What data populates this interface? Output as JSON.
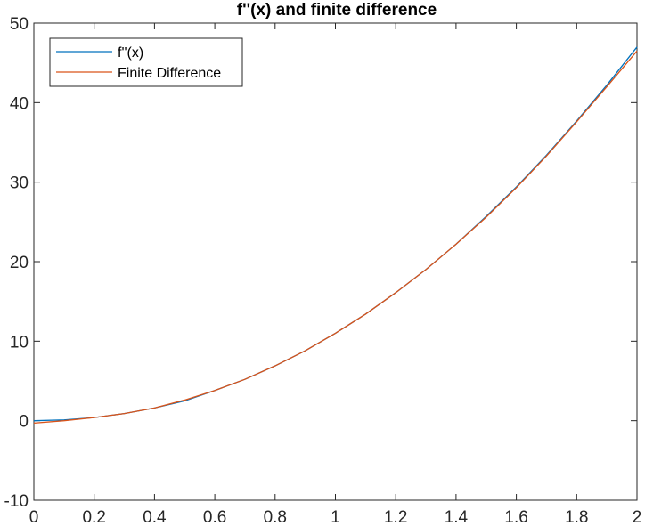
{
  "chart_data": {
    "type": "line",
    "title": "f''(x) and finite difference",
    "xlabel": "",
    "ylabel": "",
    "xlim": [
      0,
      2
    ],
    "ylim": [
      -10,
      50
    ],
    "xticks": [
      0,
      0.2,
      0.4,
      0.6,
      0.8,
      1,
      1.2,
      1.4,
      1.6,
      1.8,
      2
    ],
    "xtick_labels": [
      "0",
      "0.2",
      "0.4",
      "0.6",
      "0.8",
      "1",
      "1.2",
      "1.4",
      "1.6",
      "1.8",
      "2"
    ],
    "yticks": [
      -10,
      0,
      10,
      20,
      30,
      40,
      50
    ],
    "ytick_labels": [
      "-10",
      "0",
      "10",
      "20",
      "30",
      "40",
      "50"
    ],
    "grid": false,
    "legend_position": "top-left",
    "series": [
      {
        "name": "f''(x)",
        "color": "#0072BD",
        "x": [
          0,
          0.1,
          0.2,
          0.3,
          0.4,
          0.5,
          0.6,
          0.7,
          0.8,
          0.9,
          1.0,
          1.1,
          1.2,
          1.3,
          1.4,
          1.5,
          1.6,
          1.7,
          1.8,
          1.9,
          2.0
        ],
        "y": [
          0,
          0.1,
          0.4,
          0.9,
          1.6,
          2.5,
          3.8,
          5.2,
          6.9,
          8.8,
          11.0,
          13.4,
          16.1,
          19.0,
          22.2,
          25.7,
          29.4,
          33.4,
          37.7,
          42.2,
          47.0
        ]
      },
      {
        "name": "Finite Difference",
        "color": "#D95319",
        "x": [
          0,
          0.1,
          0.2,
          0.3,
          0.4,
          0.5,
          0.6,
          0.7,
          0.8,
          0.9,
          1.0,
          1.1,
          1.2,
          1.3,
          1.4,
          1.5,
          1.6,
          1.7,
          1.8,
          1.9,
          2.0
        ],
        "y": [
          -0.3,
          0.0,
          0.4,
          0.9,
          1.6,
          2.6,
          3.8,
          5.2,
          6.9,
          8.8,
          11.0,
          13.4,
          16.1,
          19.0,
          22.2,
          25.6,
          29.3,
          33.3,
          37.6,
          42.0,
          46.5
        ]
      }
    ]
  }
}
